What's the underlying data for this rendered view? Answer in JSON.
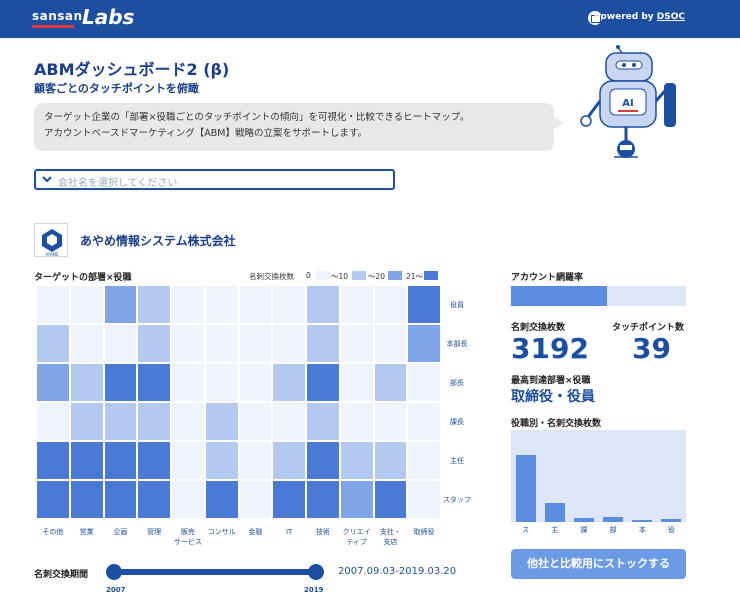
{
  "header": {
    "brand_sansan": "sansan",
    "brand_labs": "Labs",
    "powered_by": "Powered by",
    "powered_link": "DSOC"
  },
  "page": {
    "title": "ABMダッシュボード2 (β)",
    "subtitle": "顧客ごとのタッチポイントを俯瞰",
    "description_lines": [
      "ターゲット企業の「部署×役職ごとのタッチポイントの傾向」を可視化・比較できるヒートマップ。",
      "アカウントベースドマーケティング【ABM】戦略の立案をサポートします。"
    ]
  },
  "robot": {
    "badge": "AI"
  },
  "search": {
    "placeholder": "会社名を選択してください"
  },
  "company": {
    "name": "あやめ情報システム株式会社",
    "logo_text": "AYAME"
  },
  "heatmap": {
    "title": "ターゲットの部署×役職",
    "legend_title": "名刺交換枚数",
    "legend_items": [
      "0",
      "〜10",
      "〜20",
      "21〜"
    ],
    "colors": [
      "#eef3fc",
      "#b3c9f0",
      "#7fa5e6",
      "#4a7ad6"
    ],
    "columns": [
      "その他",
      "営業",
      "企画",
      "管理",
      "販売\nサービス",
      "コンサル",
      "金融",
      "IT",
      "技術",
      "クリエイ\nティブ",
      "支社・\n支店",
      "取締役"
    ],
    "rows": [
      "役員",
      "本部長",
      "部長",
      "課長",
      "主任",
      "スタッフ"
    ],
    "levels": [
      [
        0,
        0,
        2,
        1,
        0,
        0,
        0,
        0,
        1,
        0,
        0,
        3
      ],
      [
        1,
        0,
        0,
        1,
        0,
        0,
        0,
        0,
        1,
        0,
        0,
        2
      ],
      [
        2,
        1,
        3,
        3,
        0,
        0,
        0,
        1,
        3,
        0,
        1,
        0
      ],
      [
        0,
        1,
        1,
        1,
        0,
        1,
        0,
        0,
        1,
        0,
        0,
        0
      ],
      [
        3,
        3,
        3,
        3,
        0,
        1,
        0,
        1,
        3,
        1,
        1,
        0
      ],
      [
        3,
        3,
        3,
        3,
        0,
        3,
        0,
        3,
        3,
        2,
        3,
        0
      ]
    ]
  },
  "period": {
    "label": "名刺交換期間",
    "range_text": "2007.09.03-2019.03.20",
    "start": "2007",
    "end": "2019"
  },
  "coverage": {
    "label": "アカウント網羅率",
    "ratio": 0.55
  },
  "stats": {
    "cards_label": "名刺交換枚数",
    "cards_value": "3192",
    "touch_label": "タッチポイント数",
    "touch_value": "39"
  },
  "reach": {
    "label": "最高到達部署×役職",
    "value": "取締役・役員"
  },
  "role_chart": {
    "label": "役職別・名刺交換枚数",
    "categories": [
      "ス",
      "主",
      "課",
      "部",
      "本",
      "役"
    ],
    "values": [
      1460,
      410,
      80,
      100,
      40,
      60
    ],
    "ymax": 2000
  },
  "actions": {
    "stock_button": "他社と比較用にストックする"
  }
}
